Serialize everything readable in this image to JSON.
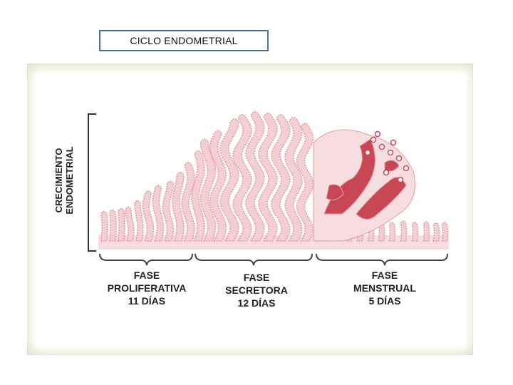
{
  "title": "CICLO ENDOMETRIAL",
  "y_axis_label": [
    "CRECIMIENTO",
    "ENDOMETRIAL"
  ],
  "phases": [
    {
      "name_line1": "FASE",
      "name_line2": "PROLIFERATIVA",
      "duration": "11 DÍAS"
    },
    {
      "name_line1": "FASE",
      "name_line2": "SECRETORA",
      "duration": "12 DÍAS"
    },
    {
      "name_line1": "FASE",
      "name_line2": "MENSTRUAL",
      "duration": "5 DÍAS"
    }
  ],
  "colors": {
    "tissue_light": "#f3cfd3",
    "tissue_outline": "#e39ca6",
    "blood": "#c94655",
    "panel": "#e3e8cf",
    "title_border": "#4a6e9a"
  }
}
